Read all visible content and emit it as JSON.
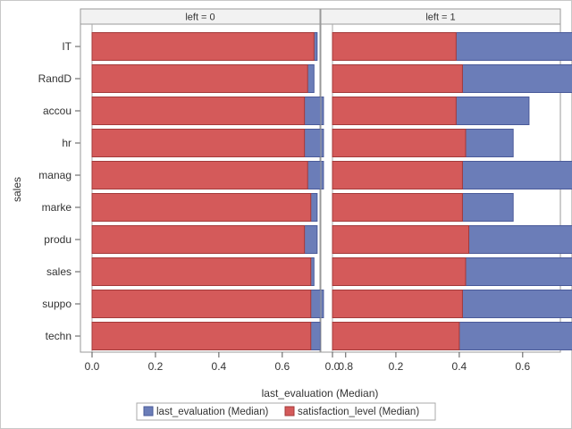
{
  "chart_data": {
    "type": "bar",
    "orientation": "horizontal",
    "layout": "overlay",
    "ylabel": "sales",
    "xlabel": "last_evaluation (Median)",
    "categories": [
      "IT",
      "RandD",
      "accou",
      "hr",
      "manag",
      "marke",
      "produ",
      "sales",
      "suppo",
      "techn"
    ],
    "xlim": [
      0,
      0.85
    ],
    "xticks": [
      "0.0",
      "0.2",
      "0.4",
      "0.6",
      "0.8"
    ],
    "panels": [
      {
        "label": "left = 0",
        "series": [
          {
            "name": "last_evaluation (Median)",
            "color": "#6b7db8",
            "values": [
              0.71,
              0.7,
              0.73,
              0.73,
              0.73,
              0.71,
              0.71,
              0.7,
              0.73,
              0.72
            ]
          },
          {
            "name": "satisfaction_level (Median)",
            "color": "#d45a5a",
            "values": [
              0.7,
              0.68,
              0.67,
              0.67,
              0.68,
              0.69,
              0.67,
              0.69,
              0.69,
              0.69
            ]
          }
        ]
      },
      {
        "label": "left = 1",
        "series": [
          {
            "name": "last_evaluation (Median)",
            "color": "#6b7db8",
            "values": [
              0.81,
              0.81,
              0.62,
              0.57,
              0.78,
              0.57,
              0.82,
              0.77,
              0.81,
              0.8
            ]
          },
          {
            "name": "satisfaction_level (Median)",
            "color": "#d45a5a",
            "values": [
              0.39,
              0.41,
              0.39,
              0.42,
              0.41,
              0.41,
              0.43,
              0.42,
              0.41,
              0.4
            ]
          }
        ]
      }
    ],
    "legend": {
      "placement": "bottom",
      "items": [
        "last_evaluation (Median)",
        "satisfaction_level (Median)"
      ]
    },
    "grid": false
  }
}
